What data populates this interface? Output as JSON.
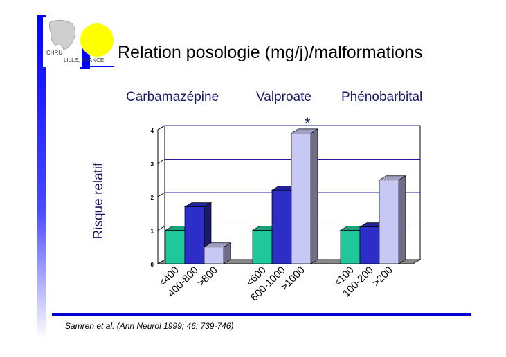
{
  "slide": {
    "title": "Relation posologie (mg/j)/malformations",
    "citation": "Samren et al. (Ann Neurol 1999; 46: 739-746)",
    "logo_text_1": "CHRU",
    "logo_text_2": "LILLE, FRANCE",
    "significance_mark": "*",
    "colors": {
      "accent_blue": "#0000cc",
      "bar_green": "#1fc89a",
      "bar_blue": "#2d2dc8",
      "bar_lavender": "#c8c8f5"
    }
  },
  "chart_data": {
    "type": "bar",
    "ylabel": "Risque relatif",
    "ylim": [
      0,
      4
    ],
    "yticks": [
      "0",
      "1",
      "2",
      "3",
      "4"
    ],
    "grid": true,
    "groups": [
      {
        "name": "Carbamazépine",
        "categories": [
          "<400",
          "400-800",
          ">800"
        ],
        "values": [
          1.0,
          1.7,
          0.5
        ]
      },
      {
        "name": "Valproate",
        "categories": [
          "<600",
          "600-1000",
          ">1000"
        ],
        "values": [
          1.0,
          2.2,
          3.9
        ]
      },
      {
        "name": "Phénobarbital",
        "categories": [
          "<100",
          "100-200",
          ">200"
        ],
        "values": [
          1.0,
          1.1,
          2.5
        ]
      }
    ]
  }
}
